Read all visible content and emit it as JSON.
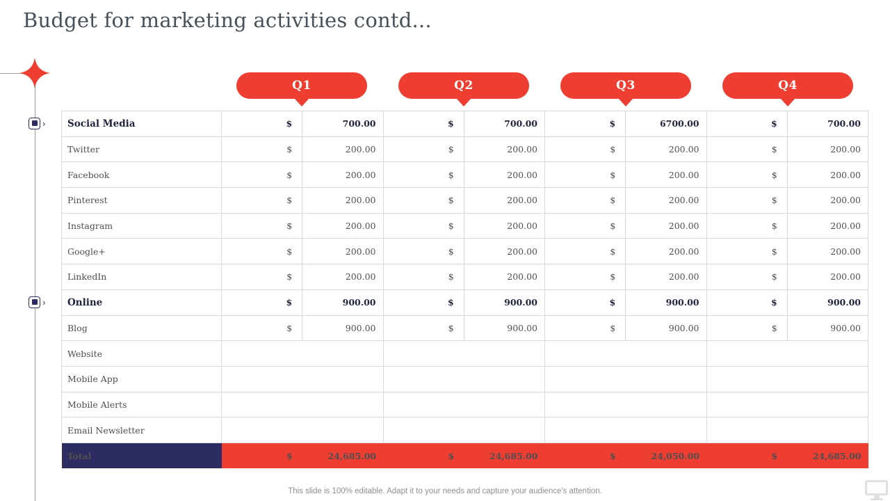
{
  "title": "Budget for marketing activities contd...",
  "footer": "This slide is 100% editable. Adapt it to your needs and capture your audience's attention.",
  "currency_symbol": "$",
  "quarters": [
    "Q1",
    "Q2",
    "Q3",
    "Q4"
  ],
  "rows": [
    {
      "label": "Social Media",
      "bold": true,
      "values": [
        "700.00",
        "700.00",
        "6700.00",
        "700.00"
      ]
    },
    {
      "label": "Twitter",
      "bold": false,
      "values": [
        "200.00",
        "200.00",
        "200.00",
        "200.00"
      ]
    },
    {
      "label": "Facebook",
      "bold": false,
      "values": [
        "200.00",
        "200.00",
        "200.00",
        "200.00"
      ]
    },
    {
      "label": "Pinterest",
      "bold": false,
      "values": [
        "200.00",
        "200.00",
        "200.00",
        "200.00"
      ]
    },
    {
      "label": "Instagram",
      "bold": false,
      "values": [
        "200.00",
        "200.00",
        "200.00",
        "200.00"
      ]
    },
    {
      "label": "Google+",
      "bold": false,
      "values": [
        "200.00",
        "200.00",
        "200.00",
        "200.00"
      ]
    },
    {
      "label": "LinkedIn",
      "bold": false,
      "values": [
        "200.00",
        "200.00",
        "200.00",
        "200.00"
      ]
    },
    {
      "label": "Online",
      "bold": true,
      "values": [
        "900.00",
        "900.00",
        "900.00",
        "900.00"
      ]
    },
    {
      "label": "Blog",
      "bold": false,
      "values": [
        "900.00",
        "900.00",
        "900.00",
        "900.00"
      ]
    },
    {
      "label": "Website",
      "bold": false,
      "values": [
        null,
        null,
        null,
        null
      ]
    },
    {
      "label": "Mobile App",
      "bold": false,
      "values": [
        null,
        null,
        null,
        null
      ]
    },
    {
      "label": "Mobile Alerts",
      "bold": false,
      "values": [
        null,
        null,
        null,
        null
      ]
    },
    {
      "label": "Email Newsletter",
      "bold": false,
      "values": [
        null,
        null,
        null,
        null
      ]
    }
  ],
  "total": {
    "label": "Total",
    "values": [
      "24,685.00",
      "24,685.00",
      "24,050.00",
      "24,685.00"
    ]
  },
  "colors": {
    "accent_red": "#EE3E32",
    "accent_navy": "#2C2B62",
    "title_text": "#47515A",
    "grid_line": "#D9D9D9"
  },
  "icons": {
    "left_accent": "sparkle-star",
    "row_marker": "square-bullet",
    "row_marker_chevron": "›",
    "bottom_right": "monitor"
  }
}
